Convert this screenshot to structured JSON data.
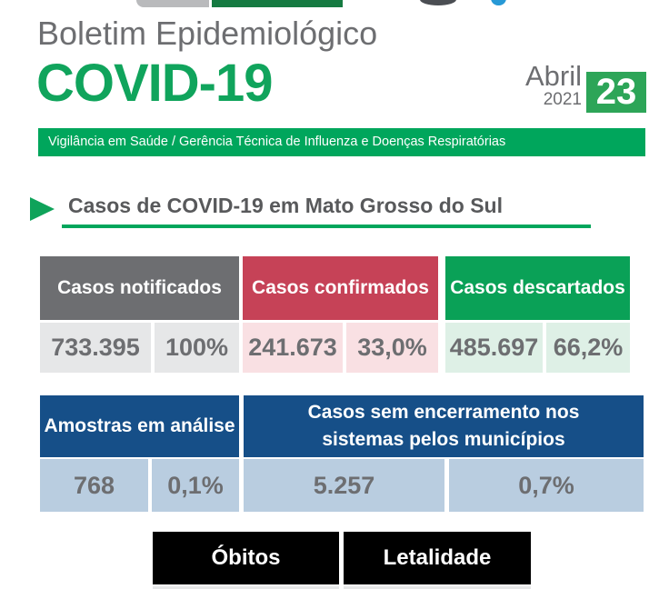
{
  "header": {
    "kicker": "Boletim Epidemiológico",
    "title": "COVID-19",
    "date": {
      "month": "Abril",
      "year": "2021",
      "day": "23"
    },
    "bar_text": "Vigilância em Saúde / Gerência Técnica de Influenza e Doenças Respiratórias"
  },
  "section": {
    "title": "Casos de COVID-19 em Mato Grosso do Sul"
  },
  "cards": {
    "notificados": {
      "label": "Casos notificados",
      "value": "733.395",
      "percent": "100%"
    },
    "confirmados": {
      "label": "Casos confirmados",
      "value": "241.673",
      "percent": "33,0%"
    },
    "descartados": {
      "label": "Casos descartados",
      "value": "485.697",
      "percent": "66,2%"
    },
    "amostras": {
      "label": "Amostras em análise",
      "value": "768",
      "percent": "0,1%"
    },
    "sem_encerramento": {
      "label": "Casos sem encerramento nos sistemas pelos municípios",
      "value": "5.257",
      "percent": "0,7%"
    }
  },
  "bottom": {
    "obitos_label": "Óbitos",
    "letalidade_label": "Letalidade"
  },
  "colors": {
    "brand_green": "#00a65c",
    "title_green": "#10a45c",
    "day_box_green": "#2da558",
    "gray_header": "#6d6e71",
    "red_header": "#c64257",
    "green_header": "#0aa157",
    "blue_header": "#164f88",
    "light_gray": "#e6e7e8",
    "light_red": "#f9e0e3",
    "light_green": "#def0e6",
    "light_blue": "#b9cde0",
    "black_header": "#000000",
    "text_gray": "#58595b"
  }
}
